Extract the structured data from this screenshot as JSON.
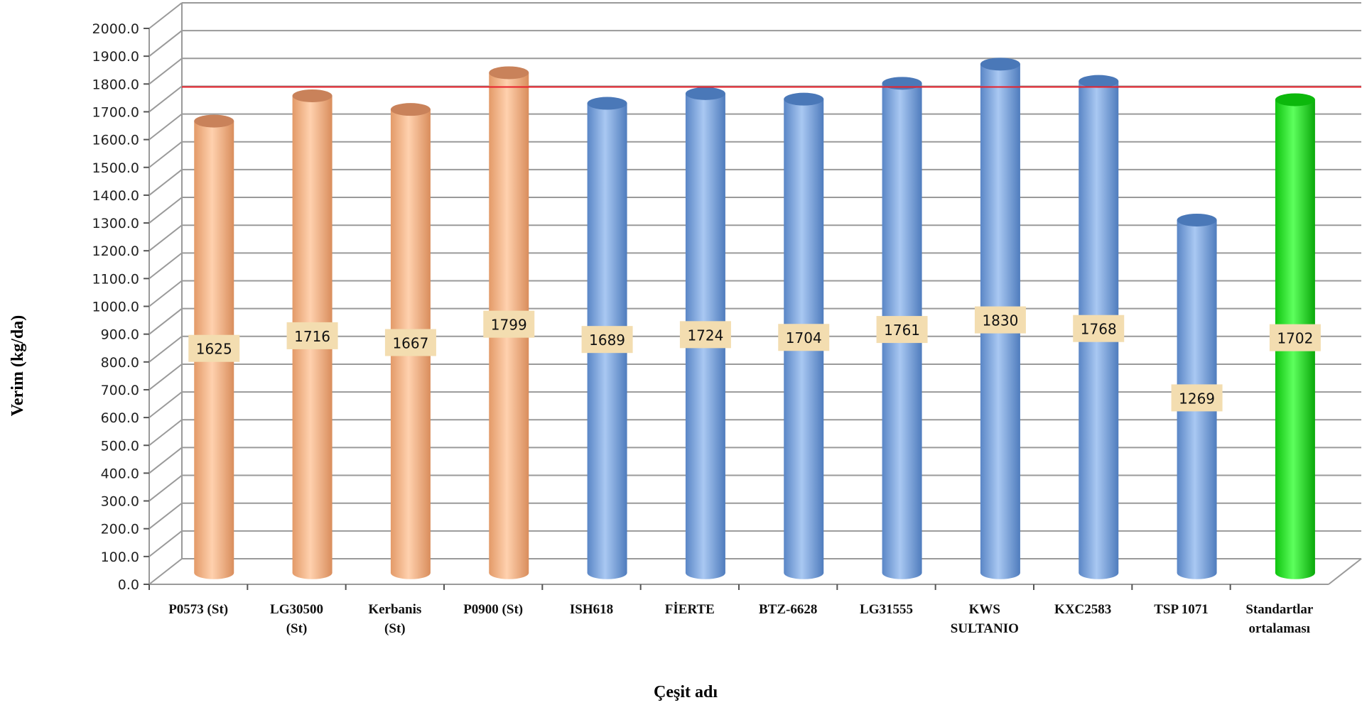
{
  "chart_data": {
    "type": "bar",
    "title": "",
    "xlabel": "Çeşit adı",
    "ylabel": "Verim (kg/da)",
    "ylim": [
      0,
      2000
    ],
    "ytick_step": 100,
    "ytick_labels": [
      "0.0",
      "100.0",
      "200.0",
      "300.0",
      "400.0",
      "500.0",
      "600.0",
      "700.0",
      "800.0",
      "900.0",
      "1000.0",
      "1100.0",
      "1200.0",
      "1300.0",
      "1400.0",
      "1500.0",
      "1600.0",
      "1700.0",
      "1800.0",
      "1900.0",
      "2000.0"
    ],
    "categories": [
      [
        "P0573 (St)"
      ],
      [
        "LG30500",
        "(St)"
      ],
      [
        "Kerbanis",
        "(St)"
      ],
      [
        "P0900 (St)"
      ],
      [
        "ISH618"
      ],
      [
        "FİERTE"
      ],
      [
        "BTZ-6628"
      ],
      [
        "LG31555"
      ],
      [
        "KWS",
        "SULTANIO"
      ],
      [
        "KXC2583"
      ],
      [
        "TSP 1071"
      ],
      [
        "Standartlar",
        "ortalaması"
      ]
    ],
    "values": [
      1625,
      1716,
      1667,
      1799,
      1689,
      1724,
      1704,
      1761,
      1830,
      1768,
      1269,
      1702
    ],
    "data_labels": [
      "1625",
      "1716",
      "1667",
      "1799",
      "1689",
      "1724",
      "1704",
      "1761",
      "1830",
      "1768",
      "1269",
      "1702"
    ],
    "bar_groups": [
      "standard",
      "standard",
      "standard",
      "standard",
      "candidate",
      "candidate",
      "candidate",
      "candidate",
      "candidate",
      "candidate",
      "candidate",
      "average"
    ],
    "reference_line": {
      "value": 1702,
      "color": "#e8202a"
    },
    "grid": true,
    "legend": "none",
    "colors": {
      "standard": "#f6b98c",
      "candidate": "#7aa7e0",
      "average": "#18e018",
      "label_box": "#f3ddb0",
      "grid": "#9a9a9a"
    }
  }
}
